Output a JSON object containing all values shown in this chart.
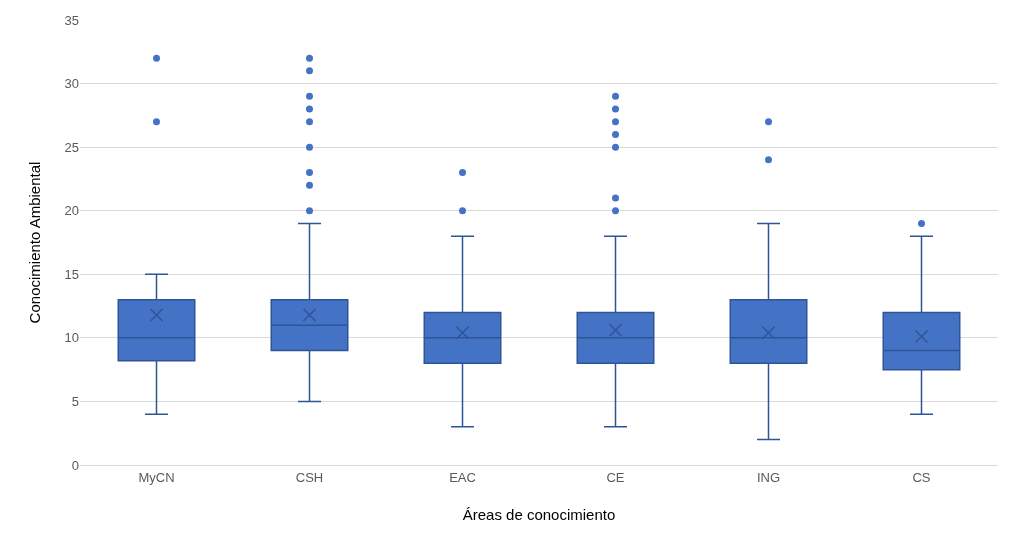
{
  "chart_data": {
    "type": "box",
    "xlabel": "Áreas de conocimiento",
    "ylabel": "Conocimiento Ambiental",
    "categories": [
      "MyCN",
      "CSH",
      "EAC",
      "CE",
      "ING",
      "CS"
    ],
    "boxes": [
      {
        "low": 4,
        "q1": 8.2,
        "median": 10,
        "q3": 13,
        "high": 15,
        "mean": 11.8,
        "outliers": [
          27,
          32
        ]
      },
      {
        "low": 5,
        "q1": 9,
        "median": 11,
        "q3": 13,
        "high": 19,
        "mean": 11.8,
        "outliers": [
          20,
          22,
          23,
          25,
          27,
          28,
          29,
          31,
          32
        ]
      },
      {
        "low": 3,
        "q1": 8,
        "median": 10,
        "q3": 12,
        "high": 18,
        "mean": 10.4,
        "outliers": [
          20,
          23
        ]
      },
      {
        "low": 3,
        "q1": 8,
        "median": 10,
        "q3": 12,
        "high": 18,
        "mean": 10.6,
        "outliers": [
          20,
          21,
          25,
          26,
          27,
          28,
          29
        ]
      },
      {
        "low": 2,
        "q1": 8,
        "median": 10,
        "q3": 13,
        "high": 19,
        "mean": 10.4,
        "outliers": [
          24,
          27
        ]
      },
      {
        "low": 4,
        "q1": 7.5,
        "median": 9,
        "q3": 12,
        "high": 18,
        "mean": 10.1,
        "outliers": [
          19
        ]
      }
    ],
    "color": "#4472c4",
    "ylim": [
      0,
      35
    ],
    "yticks": [
      0,
      5,
      10,
      15,
      20,
      25,
      30,
      35
    ],
    "grid": "y"
  }
}
